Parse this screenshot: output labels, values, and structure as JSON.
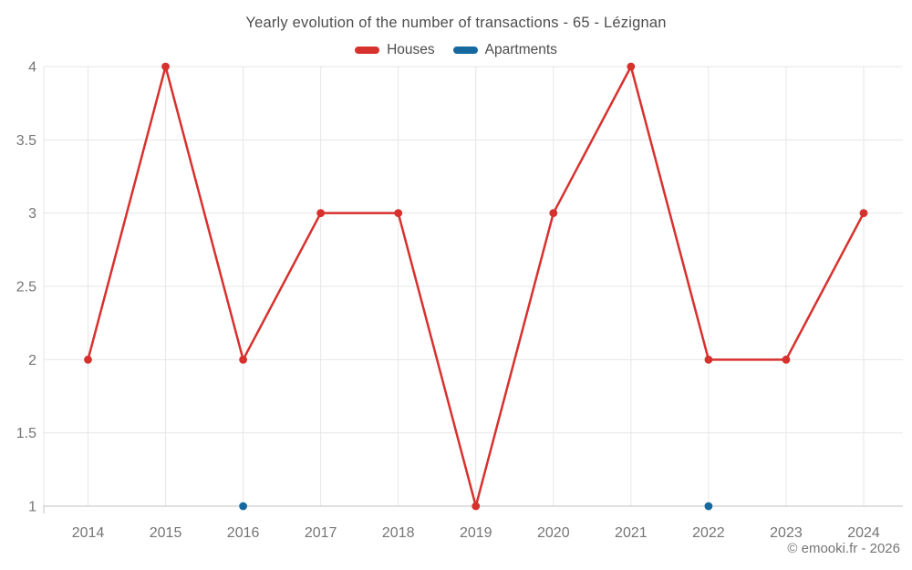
{
  "page": {
    "watermark": "© emooki.fr - 2026"
  },
  "chart_data": {
    "type": "line",
    "title": "Yearly evolution of the number of transactions - 65 - Lézignan",
    "x_categories": [
      "2014",
      "2015",
      "2016",
      "2017",
      "2018",
      "2019",
      "2020",
      "2021",
      "2022",
      "2023",
      "2024"
    ],
    "series": [
      {
        "name": "Houses",
        "color": "#d7312e",
        "line": true,
        "marker": true,
        "values": [
          2,
          4,
          2,
          3,
          3,
          1,
          3,
          4,
          2,
          2,
          3
        ]
      },
      {
        "name": "Apartments",
        "color": "#16699e",
        "line": true,
        "marker": true,
        "values": [
          null,
          null,
          1,
          null,
          null,
          null,
          null,
          null,
          1,
          null,
          null
        ]
      }
    ],
    "ylim": [
      1,
      4
    ],
    "yticks": [
      {
        "value": 4,
        "label": "4"
      },
      {
        "value": 3.5,
        "label": "3.5"
      },
      {
        "value": 3,
        "label": "3"
      },
      {
        "value": 2.5,
        "label": "2.5"
      },
      {
        "value": 2,
        "label": "2"
      },
      {
        "value": 1.5,
        "label": "1.5"
      },
      {
        "value": 1,
        "label": "1"
      }
    ],
    "grid": true,
    "legend_position": "top",
    "colors": {
      "grid_line": "#e6e6e6",
      "axis_line": "#c2c2c2",
      "tick_label": "#757575",
      "title_text": "#4d4d4d"
    }
  }
}
